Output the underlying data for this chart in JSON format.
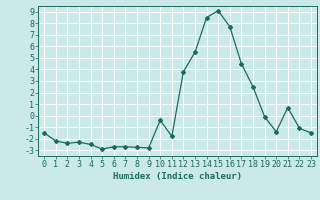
{
  "x": [
    0,
    1,
    2,
    3,
    4,
    5,
    6,
    7,
    8,
    9,
    10,
    11,
    12,
    13,
    14,
    15,
    16,
    17,
    18,
    19,
    20,
    21,
    22,
    23
  ],
  "y": [
    -1.5,
    -2.2,
    -2.4,
    -2.3,
    -2.5,
    -2.9,
    -2.7,
    -2.7,
    -2.75,
    -2.8,
    -0.4,
    -1.8,
    3.8,
    5.5,
    8.5,
    9.1,
    7.7,
    4.5,
    2.5,
    -0.1,
    -1.4,
    0.7,
    -1.1,
    -1.5
  ],
  "line_color": "#1a6b5a",
  "marker": "D",
  "marker_size": 2,
  "background_color": "#cce9e9",
  "grid_color": "#ffffff",
  "xlabel": "Humidex (Indice chaleur)",
  "xlim": [
    -0.5,
    23.5
  ],
  "ylim": [
    -3.5,
    9.5
  ],
  "yticks": [
    -3,
    -2,
    -1,
    0,
    1,
    2,
    3,
    4,
    5,
    6,
    7,
    8,
    9
  ],
  "xticks": [
    0,
    1,
    2,
    3,
    4,
    5,
    6,
    7,
    8,
    9,
    10,
    11,
    12,
    13,
    14,
    15,
    16,
    17,
    18,
    19,
    20,
    21,
    22,
    23
  ],
  "tick_color": "#1a6b5a",
  "label_color": "#1a6b5a",
  "xlabel_fontsize": 6.5,
  "tick_fontsize": 6.0
}
